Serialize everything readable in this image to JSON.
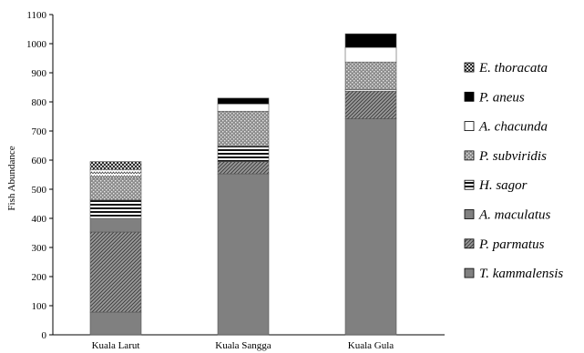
{
  "chart_data": {
    "type": "bar",
    "stacked": true,
    "title": "",
    "xlabel": "",
    "ylabel": "Fish Abundance",
    "ylim": [
      0,
      1100
    ],
    "yticks": [
      0,
      100,
      200,
      300,
      400,
      500,
      600,
      700,
      800,
      900,
      1000,
      1100
    ],
    "grid": false,
    "legend_position": "right",
    "categories": [
      "Kuala Larut",
      "Kuala Sangga",
      "Kuala Gula"
    ],
    "series": [
      {
        "name": "T. kammalensis",
        "values": [
          78,
          553,
          742
        ],
        "pattern": "solid-gray"
      },
      {
        "name": "P. parmatus",
        "values": [
          275,
          42,
          95
        ],
        "pattern": "diagonal-lines"
      },
      {
        "name": "A. maculatus",
        "values": [
          47,
          0,
          0
        ],
        "pattern": "solid-gray"
      },
      {
        "name": "H. sagor",
        "values": [
          63,
          53,
          5
        ],
        "pattern": "horizontal-lines"
      },
      {
        "name": "P. subviridis",
        "values": [
          75,
          120,
          95
        ],
        "pattern": "dots"
      },
      {
        "name": "A. chacunda",
        "values": [
          30,
          25,
          50
        ],
        "pattern": "white"
      },
      {
        "name": "P. aneus",
        "values": [
          0,
          20,
          47
        ],
        "pattern": "black"
      },
      {
        "name": "E. thoracata",
        "values": [
          27,
          0,
          0
        ],
        "pattern": "checker"
      }
    ],
    "legend_order": [
      "E. thoracata",
      "P. aneus",
      "A. chacunda",
      "P. subviridis",
      "H. sagor",
      "A. maculatus",
      "P. parmatus",
      "T. kammalensis"
    ]
  }
}
